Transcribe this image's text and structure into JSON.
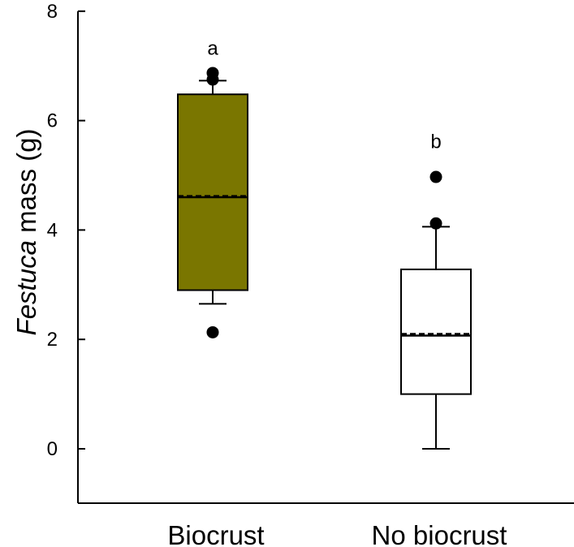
{
  "chart_data": {
    "type": "box",
    "ylabel": {
      "italic": "Festuca",
      "rest": " mass (g)"
    },
    "ylim": [
      -1,
      8
    ],
    "yticks": [
      0,
      2,
      4,
      6,
      8
    ],
    "grid": false,
    "categories": [
      "Biocrust",
      "No biocrust"
    ],
    "boxes": [
      {
        "name": "Biocrust",
        "fill": "#7a7600",
        "q1": 2.9,
        "median": 4.6,
        "mean": 4.62,
        "q3": 6.48,
        "whisker_low": 2.65,
        "whisker_high": 6.73,
        "outliers": [
          2.13,
          6.75,
          6.87
        ],
        "significance": "a",
        "significance_y": 7.2
      },
      {
        "name": "No biocrust",
        "fill": "#ffffff",
        "q1": 1.0,
        "median": 2.07,
        "mean": 2.1,
        "q3": 3.28,
        "whisker_low": 0.0,
        "whisker_high": 4.06,
        "outliers": [
          4.12,
          4.97
        ],
        "significance": "b",
        "significance_y": 5.5
      }
    ]
  }
}
